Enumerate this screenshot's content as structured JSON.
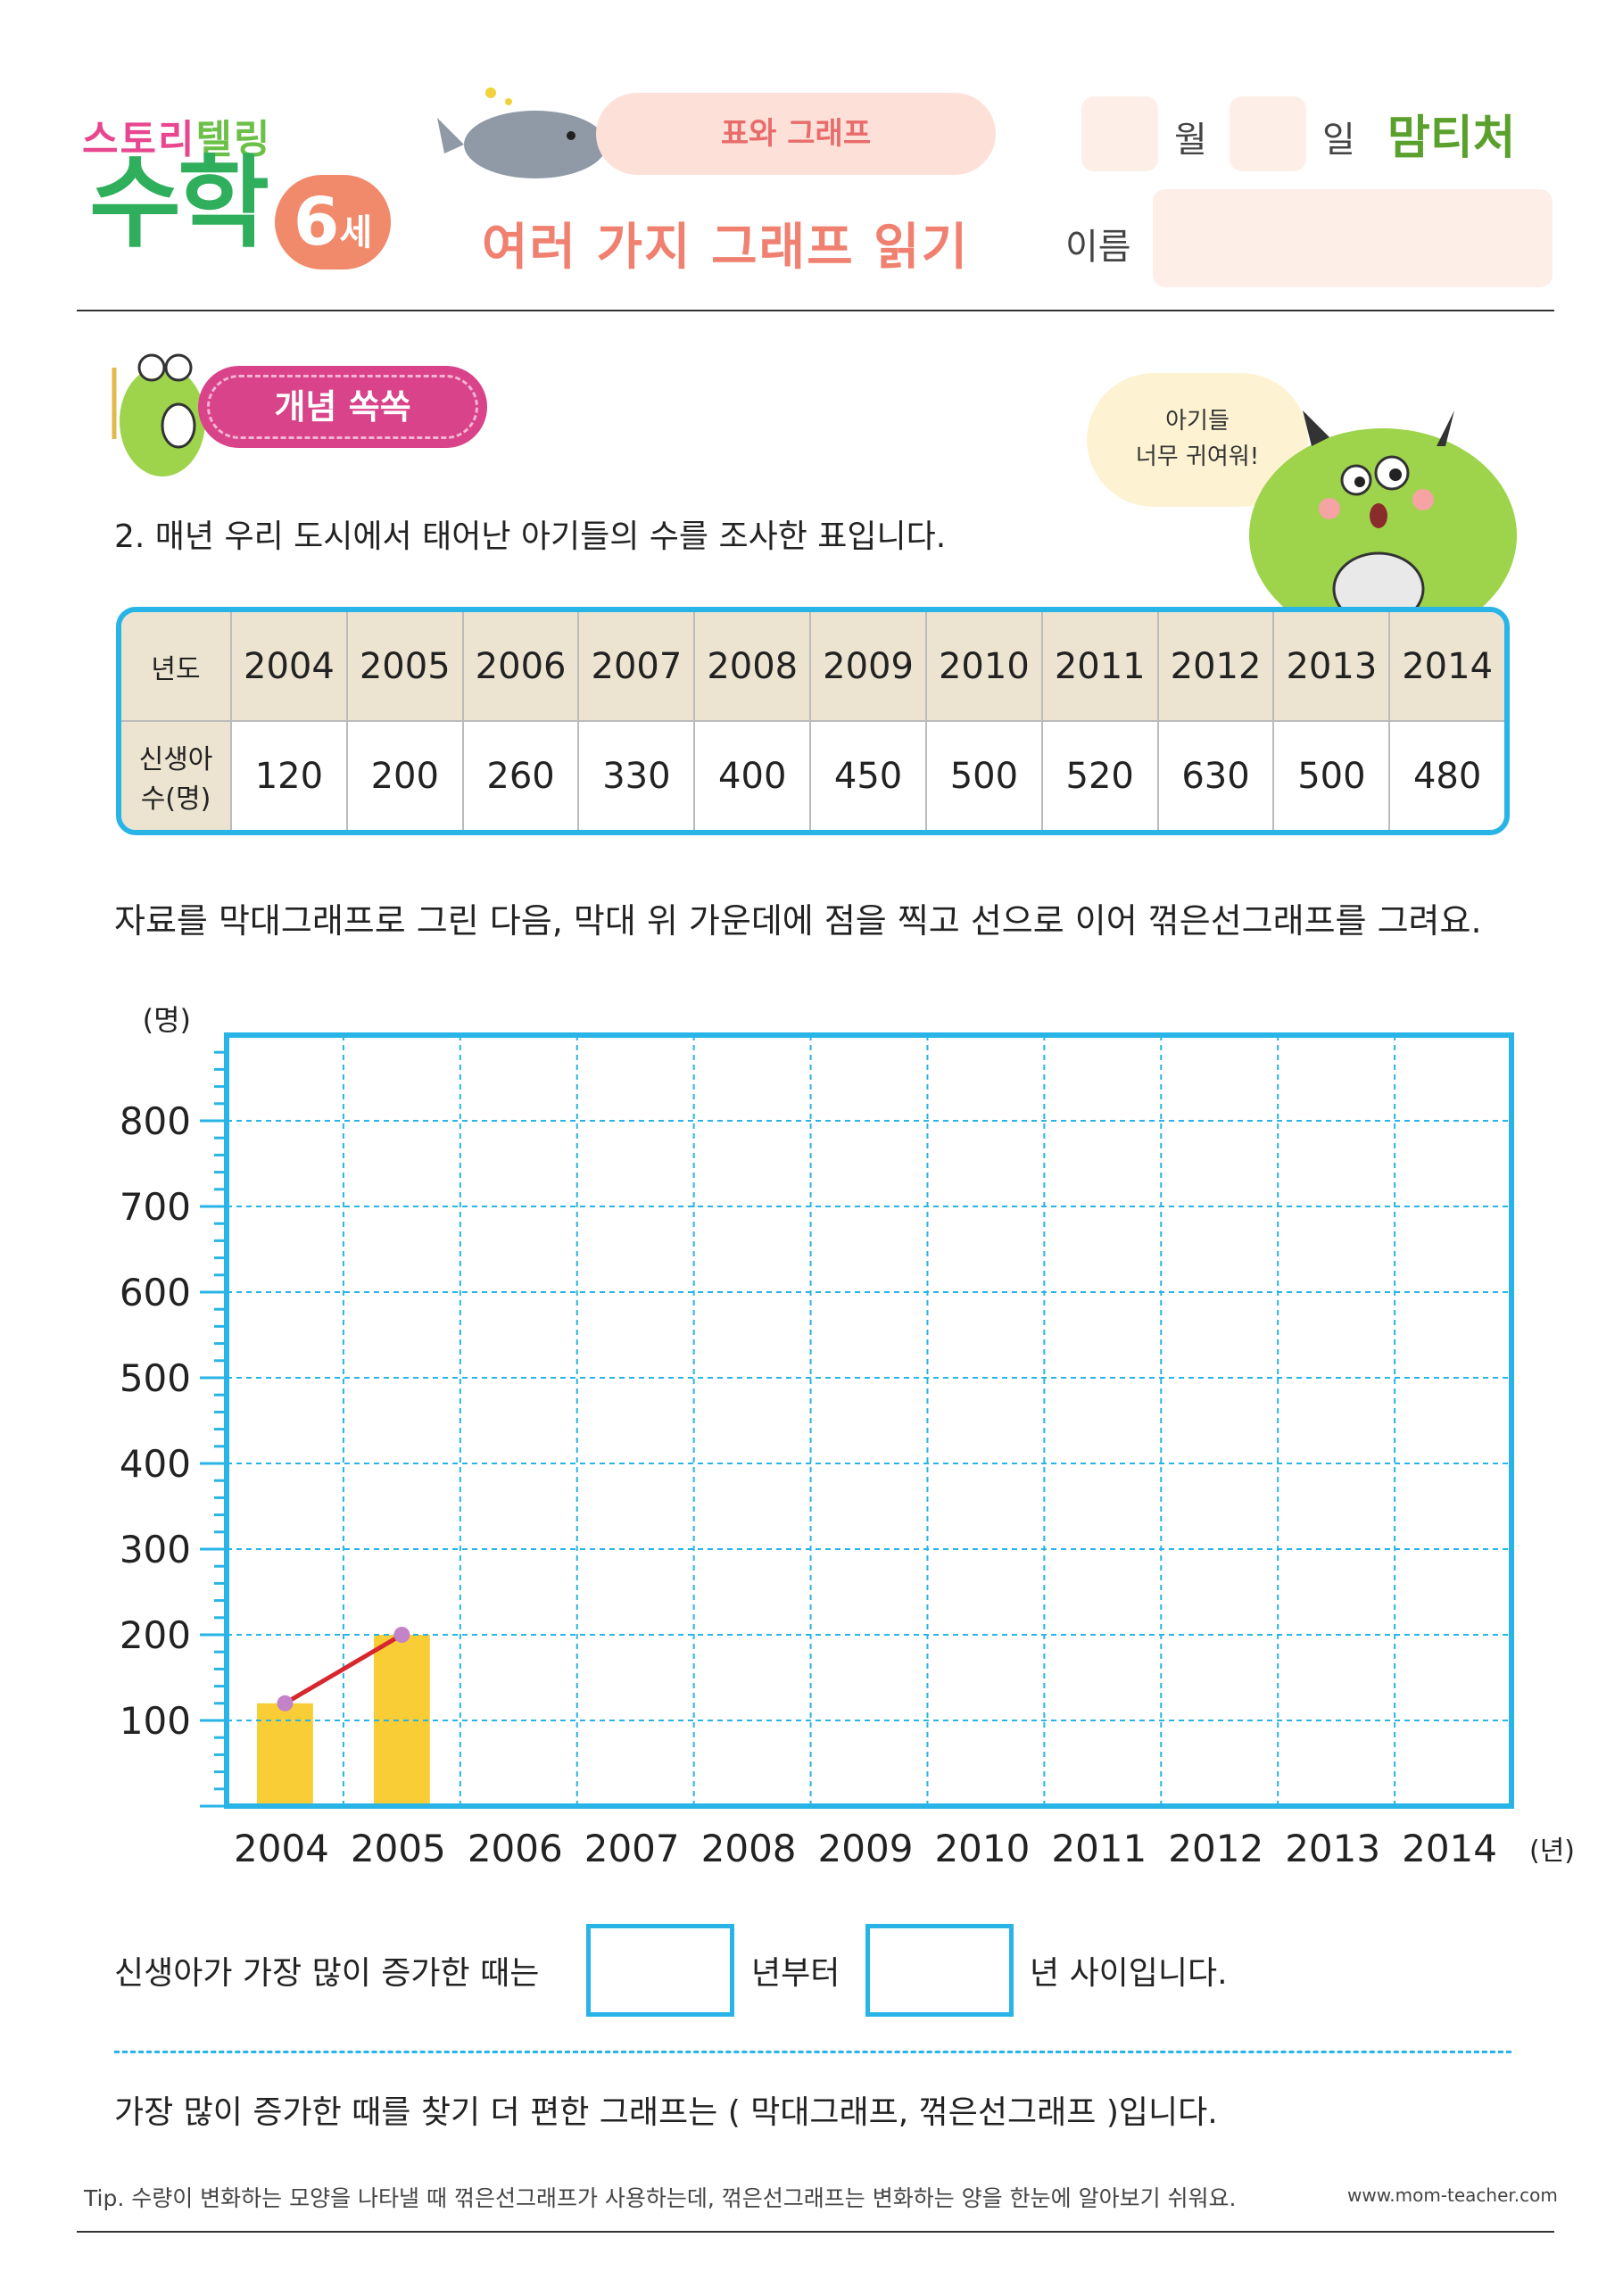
{
  "header": {
    "logo_top": [
      "스토리",
      "텔링"
    ],
    "logo_main": "수학",
    "logo_age": "6",
    "logo_age_unit": "세",
    "topic": "표와 그래프",
    "title": "여러 가지 그래프 읽기",
    "month_label": "월",
    "day_label": "일",
    "name_label": "이름",
    "brand": "맘티처"
  },
  "concept_tag": "개념 쏙쏙",
  "speech_bubble": [
    "아기들",
    "너무 귀여워!"
  ],
  "question": "2. 매년 우리 도시에서 태어난 아기들의 수를 조사한 표입니다.",
  "table": {
    "year_header": "년도",
    "count_header": [
      "신생아",
      "수(명)"
    ],
    "years": [
      "2004",
      "2005",
      "2006",
      "2007",
      "2008",
      "2009",
      "2010",
      "2011",
      "2012",
      "2013",
      "2014"
    ],
    "counts": [
      "120",
      "200",
      "260",
      "330",
      "400",
      "450",
      "500",
      "520",
      "630",
      "500",
      "480"
    ]
  },
  "instruction": "자료를 막대그래프로 그린 다음, 막대 위 가운데에 점을 찍고 선으로 이어 꺾은선그래프를 그려요.",
  "chart_data": {
    "type": "bar",
    "title": "",
    "ylabel": "(명)",
    "xlabel": "(년)",
    "categories": [
      "2004",
      "2005",
      "2006",
      "2007",
      "2008",
      "2009",
      "2010",
      "2011",
      "2012",
      "2013",
      "2014"
    ],
    "y_ticks": [
      "100",
      "200",
      "300",
      "400",
      "500",
      "600",
      "700",
      "800"
    ],
    "ylim": [
      0,
      900
    ],
    "grid": true,
    "series": [
      {
        "type": "bar",
        "x": [
          "2004",
          "2005"
        ],
        "values": [
          120,
          200
        ]
      },
      {
        "type": "line",
        "x": [
          "2004",
          "2005"
        ],
        "values": [
          120,
          200
        ]
      }
    ],
    "colors": {
      "bar": "#f9cd35",
      "line": "#d8262e",
      "point": "#c283c9",
      "grid": "#28b4e6"
    }
  },
  "answer": {
    "prefix": "신생아가 가장 많이 증가한 때는",
    "mid": "년부터",
    "suffix": "년 사이입니다.",
    "q2": "가장 많이 증가한 때를 찾기 더 편한 그래프는 ( 막대그래프, 꺾은선그래프 )입니다."
  },
  "tip": "Tip. 수량이 변화하는 모양을 나타낼 때 꺾은선그래프가 사용하는데, 꺾은선그래프는 변화하는 양을 한눈에 알아보기 쉬워요.",
  "url": "www.mom-teacher.com"
}
